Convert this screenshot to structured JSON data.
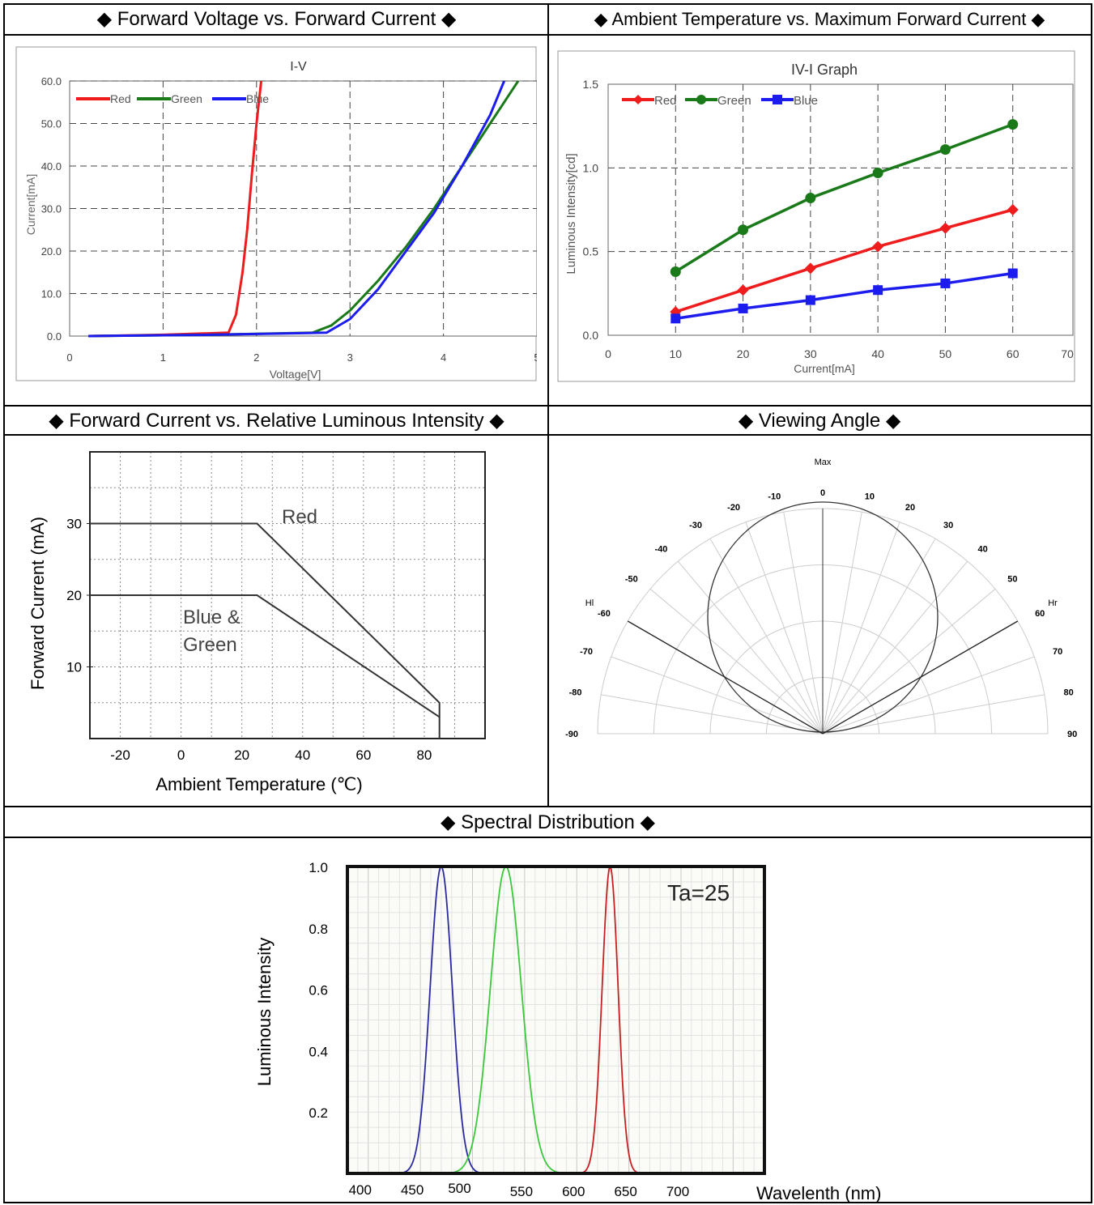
{
  "headers": {
    "iv": "◆ Forward Voltage vs. Forward Current ◆",
    "ivi": "◆ Ambient Temperature vs. Maximum Forward Current ◆",
    "derating": "◆ Forward Current vs. Relative Luminous Intensity ◆",
    "angle": "◆ Viewing Angle ◆",
    "spectral": "◆ Spectral Distribution ◆"
  },
  "colors": {
    "red": "#ee1c1c",
    "green": "#1a7a1a",
    "blue": "#1c1cee",
    "spec_red": "#c82020",
    "spec_green": "#3cc83c",
    "spec_blue": "#2a2aa0"
  },
  "chart_data": [
    {
      "type": "line",
      "title": "I-V",
      "xlabel": "Voltage[V]",
      "ylabel": "Current[mA]",
      "xlim": [
        0,
        5
      ],
      "ylim": [
        0,
        60
      ],
      "xticks": [
        "0",
        "1",
        "2",
        "3",
        "4",
        "5"
      ],
      "yticks": [
        "0.0",
        "10.0",
        "20.0",
        "30.0",
        "40.0",
        "50.0",
        "60.0"
      ],
      "grid": true,
      "legend": "top-left",
      "series": [
        {
          "name": "Red",
          "x": [
            0.2,
            1.0,
            1.7,
            1.78,
            1.85,
            1.9,
            1.95,
            2.0,
            2.05
          ],
          "y": [
            0,
            0.3,
            0.8,
            5,
            15,
            25,
            38,
            50,
            60
          ]
        },
        {
          "name": "Green",
          "x": [
            0.2,
            1.5,
            2.6,
            2.8,
            3.0,
            3.3,
            3.6,
            3.9,
            4.2,
            4.5,
            4.8
          ],
          "y": [
            0,
            0.3,
            0.8,
            2.5,
            6,
            13,
            21,
            30,
            40,
            50,
            60
          ]
        },
        {
          "name": "Blue",
          "x": [
            0.2,
            1.5,
            2.75,
            3.0,
            3.3,
            3.6,
            3.9,
            4.2,
            4.5,
            4.65
          ],
          "y": [
            0,
            0.3,
            0.8,
            4,
            11,
            20,
            29,
            40,
            52,
            60
          ]
        }
      ]
    },
    {
      "type": "line",
      "title": "IV-I Graph",
      "xlabel": "Current[mA]",
      "ylabel": "Luminous Intensity[cd]",
      "xlim": [
        0,
        70
      ],
      "ylim": [
        0,
        1.5
      ],
      "xticks": [
        "0",
        "10",
        "20",
        "30",
        "40",
        "50",
        "60",
        "70"
      ],
      "yticks": [
        "0.0",
        "0.5",
        "1.0",
        "1.5"
      ],
      "grid": true,
      "legend": "top-left",
      "x": [
        10,
        20,
        30,
        40,
        50,
        60
      ],
      "series": [
        {
          "name": "Red",
          "values": [
            0.14,
            0.27,
            0.4,
            0.53,
            0.64,
            0.75
          ]
        },
        {
          "name": "Green",
          "values": [
            0.38,
            0.63,
            0.82,
            0.97,
            1.11,
            1.26
          ]
        },
        {
          "name": "Blue",
          "values": [
            0.1,
            0.16,
            0.21,
            0.27,
            0.31,
            0.37
          ]
        }
      ]
    },
    {
      "type": "line",
      "xlabel": "Ambient Temperature (℃)",
      "ylabel": "Forward Current (mA)",
      "xlim": [
        -30,
        100
      ],
      "ylim": [
        0,
        40
      ],
      "xticks": [
        "-20",
        "0",
        "20",
        "40",
        "60",
        "80"
      ],
      "yticks": [
        "10",
        "20",
        "30"
      ],
      "grid": true,
      "series": [
        {
          "name": "Red",
          "x": [
            -30,
            25,
            85,
            85
          ],
          "y": [
            30,
            30,
            5,
            3
          ]
        },
        {
          "name": "Blue & Green",
          "x": [
            -30,
            25,
            85,
            85
          ],
          "y": [
            20,
            20,
            3,
            0
          ]
        }
      ]
    },
    {
      "type": "polar",
      "labels": {
        "max": "Max",
        "left": "Hl",
        "right": "Hr"
      },
      "angles_left": [
        "-10",
        "-20",
        "-30",
        "-40",
        "-50",
        "-60",
        "-70",
        "-80",
        "-90"
      ],
      "angles_right": [
        "0",
        "10",
        "20",
        "30",
        "40",
        "50",
        "60",
        "70",
        "80",
        "90"
      ],
      "half_angle_deg": 60
    },
    {
      "type": "line",
      "annotation": "Ta=25",
      "xlabel": "Wavelenth (nm)",
      "ylabel": "Luminous Intensity",
      "xlim": [
        380,
        780
      ],
      "ylim": [
        0,
        1.0
      ],
      "xticks": [
        "400",
        "450",
        "500",
        "550",
        "600",
        "650",
        "700"
      ],
      "yticks": [
        "0.2",
        "0.4",
        "0.6",
        "0.8",
        "1.0"
      ],
      "grid": true,
      "series": [
        {
          "peak": 470,
          "fwhm": 25
        },
        {
          "peak": 532,
          "fwhm": 35
        },
        {
          "peak": 632,
          "fwhm": 18
        }
      ]
    }
  ]
}
